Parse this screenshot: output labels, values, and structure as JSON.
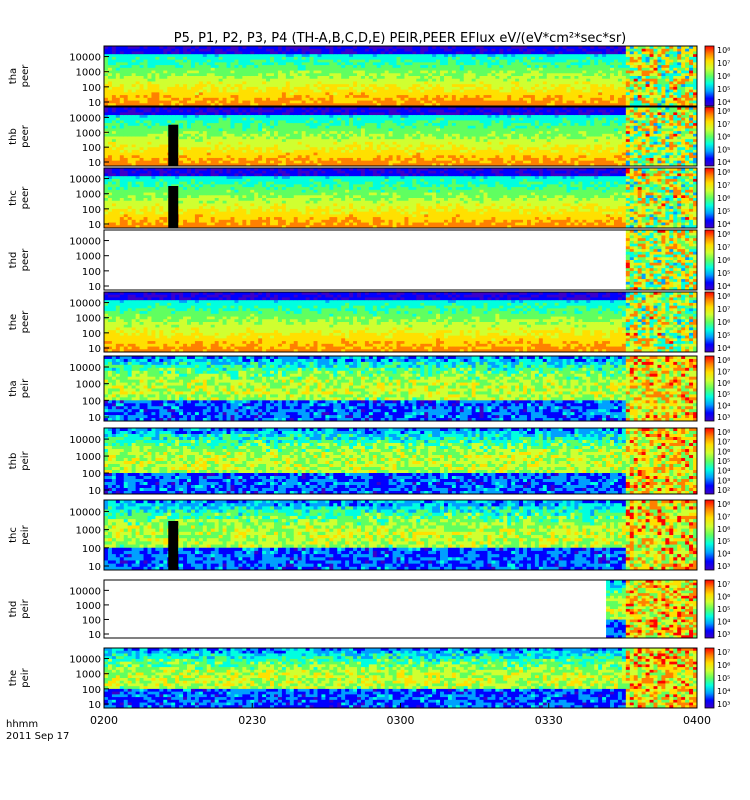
{
  "chart_data": {
    "type": "heatmap",
    "title": "P5, P1, P2, P3, P4 (TH-A,B,C,D,E) PEIR,PEER EFlux eV/(eV*cm²*sec*sr)",
    "time_axis": {
      "label": "hhmm",
      "date": "2011 Sep 17",
      "ticks": [
        "0200",
        "0230",
        "0300",
        "0330",
        "0400"
      ],
      "range": [
        "02:00",
        "04:00"
      ]
    },
    "y_scale": "log",
    "y_ticks": [
      "10",
      "100",
      "1000",
      "10000"
    ],
    "colormap": [
      "#3c00c8",
      "#0000ff",
      "#00a0ff",
      "#00ffe0",
      "#60ff60",
      "#d0ff30",
      "#ffe000",
      "#ff8000",
      "#ff0000"
    ],
    "panels": [
      {
        "probe": "tha",
        "species": "peer",
        "colorbar_ticks": [
          "10⁸",
          "10⁷",
          "10⁶",
          "10⁵",
          "10⁴"
        ],
        "color_range_exp": [
          3.5,
          8
        ]
      },
      {
        "probe": "thb",
        "species": "peer",
        "colorbar_ticks": [
          "10⁸",
          "10⁷",
          "10⁶",
          "10⁵",
          "10⁴"
        ],
        "color_range_exp": [
          3.5,
          8
        ]
      },
      {
        "probe": "thc",
        "species": "peer",
        "colorbar_ticks": [
          "10⁸",
          "10⁷",
          "10⁶",
          "10⁵",
          "10⁴"
        ],
        "color_range_exp": [
          3.5,
          8
        ]
      },
      {
        "probe": "thd",
        "species": "peer",
        "colorbar_ticks": [
          "10⁸",
          "10⁷",
          "10⁶",
          "10⁵",
          "10⁴"
        ],
        "color_range_exp": [
          3.5,
          8
        ]
      },
      {
        "probe": "the",
        "species": "peer",
        "colorbar_ticks": [
          "10⁸",
          "10⁷",
          "10⁶",
          "10⁵",
          "10⁴"
        ],
        "color_range_exp": [
          3.5,
          8
        ]
      },
      {
        "probe": "tha",
        "species": "peir",
        "colorbar_ticks": [
          "10⁸",
          "10⁷",
          "10⁶",
          "10⁵",
          "10⁴",
          "10³"
        ],
        "color_range_exp": [
          2.5,
          8
        ]
      },
      {
        "probe": "thb",
        "species": "peir",
        "colorbar_ticks": [
          "10⁸",
          "10⁷",
          "10⁶",
          "10⁵",
          "10⁴",
          "10³",
          "10²"
        ],
        "color_range_exp": [
          1.5,
          8
        ]
      },
      {
        "probe": "thc",
        "species": "peir",
        "colorbar_ticks": [
          "10⁸",
          "10⁷",
          "10⁶",
          "10⁵",
          "10⁴",
          "10³"
        ],
        "color_range_exp": [
          2.5,
          8
        ]
      },
      {
        "probe": "thd",
        "species": "peir",
        "colorbar_ticks": [
          "10⁷",
          "10⁶",
          "10⁵",
          "10⁴",
          "10³"
        ],
        "color_range_exp": [
          2.5,
          7.3
        ]
      },
      {
        "probe": "the",
        "species": "peir",
        "colorbar_ticks": [
          "10⁷",
          "10⁶",
          "10⁵",
          "10⁴",
          "10³"
        ],
        "color_range_exp": [
          2.5,
          7.3
        ]
      }
    ]
  }
}
